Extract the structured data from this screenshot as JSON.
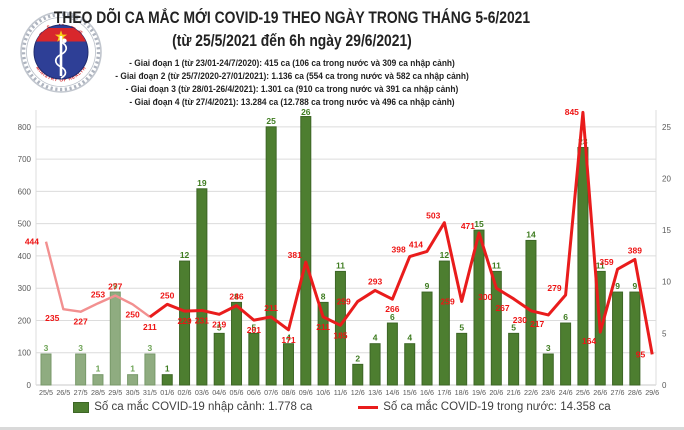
{
  "header": {
    "title_line1": "THEO DÕI CA MẮC MỚI COVID-19 THEO NGÀY TRONG THÁNG 5-6/2021",
    "title_line2": "(từ 25/5/2021 đến 6h ngày 29/6/2021)",
    "bullets": [
      "- Giai đoạn 1 (từ 23/01-24/7/2020): 415 ca (106 ca trong nước và 309 ca nhập cảnh)",
      "- Giai đoạn 2 (từ 25/7/2020-27/01/2021): 1.136 ca (554 ca trong nước và 582 ca nhập cảnh)",
      "- Giai đoạn 3 (từ 28/01-26/4/2021): 1.301 ca (910 ca trong nước và 391 ca nhập cảnh)",
      "- Giai đoạn 4 (từ 27/4/2021): 13.284 ca (12.788 ca trong nước và 496 ca nhập cảnh)"
    ],
    "logo": {
      "top_text": "BỘ Y TẾ",
      "bottom_text": "MINISTRY OF HEALTH"
    }
  },
  "legend": {
    "bar_label": "Số ca mắc COVID-19 nhập cảnh: 1.778 ca",
    "line_label": "Số ca mắc COVID-19 trong nước: 14.358 ca"
  },
  "chart_data": {
    "type": "bar+line combo",
    "categories": [
      "25/5",
      "26/5",
      "27/5",
      "28/5",
      "29/5",
      "30/5",
      "31/5",
      "01/6",
      "02/6",
      "03/6",
      "04/6",
      "05/6",
      "06/6",
      "07/6",
      "08/6",
      "09/6",
      "10/6",
      "11/6",
      "12/6",
      "13/6",
      "14/6",
      "15/6",
      "16/6",
      "17/6",
      "18/6",
      "19/6",
      "20/6",
      "21/6",
      "22/6",
      "23/6",
      "24/6",
      "25/6",
      "26/6",
      "27/6",
      "28/6",
      "29/6"
    ],
    "series": [
      {
        "name": "Số ca mắc COVID-19 nhập cảnh",
        "type": "bar",
        "axis": "right",
        "values": [
          3,
          0,
          3,
          1,
          9,
          1,
          3,
          1,
          12,
          19,
          5,
          8,
          5,
          25,
          4,
          26,
          8,
          11,
          2,
          4,
          6,
          4,
          9,
          12,
          5,
          15,
          11,
          5,
          14,
          3,
          6,
          23,
          11,
          9,
          9,
          0
        ]
      },
      {
        "name": "Số ca mắc COVID-19 trong nước",
        "type": "line",
        "axis": "left",
        "values": [
          444,
          235,
          227,
          253,
          277,
          250,
          211,
          250,
          229,
          231,
          219,
          246,
          201,
          211,
          171,
          381,
          211,
          185,
          259,
          293,
          266,
          398,
          414,
          503,
          259,
          471,
          300,
          267,
          230,
          217,
          279,
          845,
          164,
          359,
          389,
          95
        ]
      }
    ],
    "left_axis": {
      "ticks": [
        0,
        100,
        200,
        300,
        400,
        500,
        600,
        700,
        800
      ],
      "max": 865
    },
    "right_axis": {
      "ticks": [
        0,
        5,
        10,
        15,
        20,
        25
      ],
      "left_units_per_right_unit": 32
    },
    "may_point_count": 7,
    "grid": true,
    "legend_position": "bottom",
    "line_label_pos": [
      "left",
      "left-below",
      "below",
      "above",
      "above",
      "below",
      "below",
      "above",
      "below",
      "below",
      "below",
      "above",
      "below",
      "above",
      "below",
      "left-above",
      "below",
      "below",
      "left",
      "above",
      "below",
      "left-above",
      "left-above",
      "left-above",
      "left",
      "left-above",
      "left-below",
      "left-below",
      "left-below",
      "left-below",
      "left-above",
      "left-above",
      "left-below",
      "left-above",
      "above",
      "left"
    ],
    "colors": {
      "bar_may": "#8fac80",
      "bar_may_border": "#78996a",
      "bar_may_label": "#6da355",
      "bar_june": "#4d7e30",
      "bar_june_border": "#3d6626",
      "bar_june_label": "#3e7c20",
      "line_may": "#f29090",
      "line_june": "#e91c1c",
      "line_label": "#ee1414",
      "grid": "#dcdcdc",
      "axis_text": "#595959"
    }
  }
}
